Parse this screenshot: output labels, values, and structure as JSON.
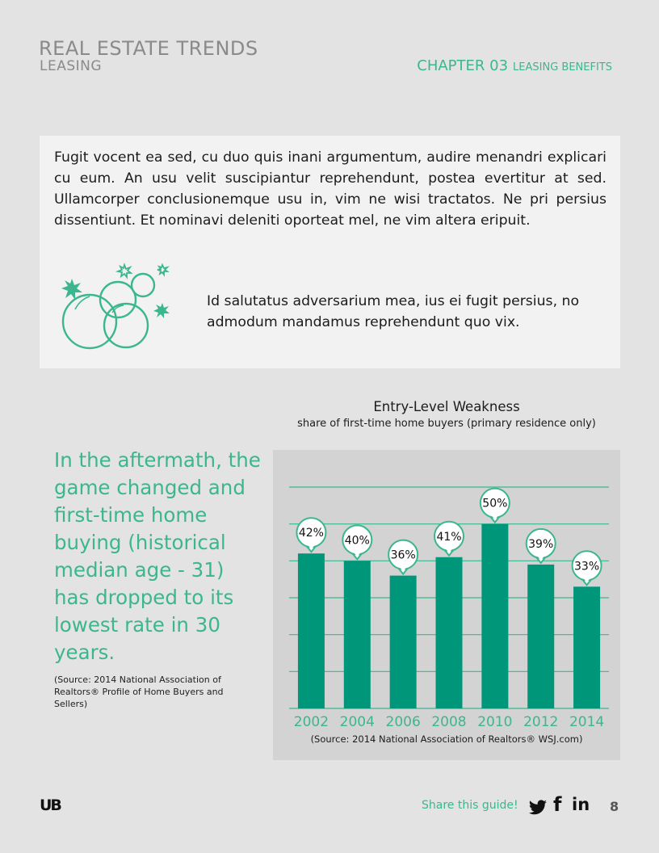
{
  "header": {
    "title": "REAL ESTATE TRENDS",
    "subtitle": "LEASING",
    "chapter_number": "CHAPTER 03",
    "chapter_section": "LEASING BENEFITS"
  },
  "textbox": {
    "intro": "Fugit vocent ea sed, cu duo quis inani argumentum, audire menandri explicari cu eum. An usu velit suscipiantur reprehendunt, postea evertitur at sed. Ullamcorper conclusionemque usu in, vim ne wisi tractatos. Ne pri persius dissentiunt. Et nominavi deleniti oporteat mel, ne vim altera eripuit.",
    "sidenote": "Id salutatus adversarium mea, ius ei fugit persius, no admodum mandamus reprehendunt quo vix.",
    "icon": "bubbles-sparkle-icon"
  },
  "quote": {
    "text": "In the aftermath, the game changed and first-time home buying (historical median age - 31) has dropped to its lowest rate in 30 years.",
    "source": "(Source: 2014 National Association of Realtors® Profile of Home Buyers and Sellers)"
  },
  "chart_data": {
    "type": "bar",
    "title": "Entry-Level Weakness",
    "subtitle": "share of first-time home buyers (primary residence only)",
    "categories": [
      "2002",
      "2004",
      "2006",
      "2008",
      "2010",
      "2012",
      "2014"
    ],
    "values": [
      42,
      40,
      36,
      41,
      50,
      39,
      33
    ],
    "labels": [
      "42%",
      "40%",
      "36%",
      "41%",
      "50%",
      "39%",
      "33%"
    ],
    "ylim": [
      0,
      60
    ],
    "grid": true,
    "source": "(Source: 2014 National Association of Realtors® WSJ.com)",
    "bar_color": "#00967a"
  },
  "footer": {
    "logo": "UB",
    "share_label": "Share this guide!",
    "social_icons": [
      "twitter-icon",
      "facebook-icon",
      "linkedin-icon"
    ],
    "facebook_glyph": "f",
    "linkedin_glyph": "in",
    "page_number": "8"
  },
  "colors": {
    "accent": "#3cb68f",
    "bar": "#00967a",
    "panel": "#f2f2f2",
    "chart_bg": "#d3d3d3"
  }
}
